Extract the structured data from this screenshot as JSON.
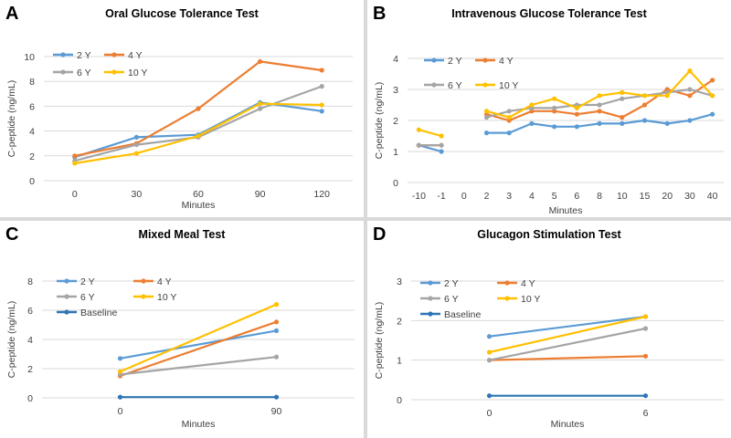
{
  "chart_data": [
    {
      "id": "a",
      "panel_label": "A",
      "type": "line",
      "title": "Oral Glucose Tolerance Test",
      "xlabel": "Minutes",
      "ylabel": "C-peptide  (ng/mL)",
      "categories": [
        "0",
        "30",
        "60",
        "90",
        "120"
      ],
      "ylim": [
        0,
        10
      ],
      "yticks": [
        "0",
        "2",
        "4",
        "6",
        "8",
        "10"
      ],
      "legend_position": "top-left",
      "series": [
        {
          "name": "2 Y",
          "color": "#5b9bd5",
          "values": [
            1.9,
            3.5,
            3.7,
            6.3,
            5.6
          ]
        },
        {
          "name": "4 Y",
          "color": "#ed7d31",
          "values": [
            2.0,
            3.0,
            5.8,
            9.6,
            8.9
          ]
        },
        {
          "name": "6 Y",
          "color": "#a5a5a5",
          "values": [
            1.6,
            2.9,
            3.5,
            5.8,
            7.6
          ]
        },
        {
          "name": "10 Y",
          "color": "#ffc000",
          "values": [
            1.4,
            2.2,
            3.6,
            6.2,
            6.1
          ]
        }
      ]
    },
    {
      "id": "b",
      "panel_label": "B",
      "type": "line",
      "title": "Intravenous Glucose Tolerance Test",
      "xlabel": "Minutes",
      "ylabel": "C-peptide  (ng/mL)",
      "categories": [
        "-10",
        "-1",
        "0",
        "2",
        "3",
        "4",
        "5",
        "6",
        "8",
        "10",
        "15",
        "20",
        "30",
        "40"
      ],
      "ylim": [
        0,
        4
      ],
      "yticks": [
        "0",
        "1",
        "2",
        "3",
        "4"
      ],
      "legend_position": "top-left",
      "series": [
        {
          "name": "2 Y",
          "color": "#5b9bd5",
          "values": [
            1.2,
            1.0,
            null,
            1.6,
            1.6,
            1.9,
            1.8,
            1.8,
            1.9,
            1.9,
            2.0,
            1.9,
            2.0,
            2.2
          ]
        },
        {
          "name": "4 Y",
          "color": "#ed7d31",
          "values": [
            1.2,
            1.2,
            null,
            2.2,
            2.0,
            2.3,
            2.3,
            2.2,
            2.3,
            2.1,
            2.5,
            3.0,
            2.8,
            3.3
          ]
        },
        {
          "name": "6 Y",
          "color": "#a5a5a5",
          "values": [
            1.2,
            1.2,
            null,
            2.1,
            2.3,
            2.4,
            2.4,
            2.5,
            2.5,
            2.7,
            2.8,
            2.9,
            3.0,
            2.8
          ]
        },
        {
          "name": "10 Y",
          "color": "#ffc000",
          "values": [
            1.7,
            1.5,
            null,
            2.3,
            2.1,
            2.5,
            2.7,
            2.4,
            2.8,
            2.9,
            2.8,
            2.8,
            3.6,
            2.8
          ]
        }
      ]
    },
    {
      "id": "c",
      "panel_label": "C",
      "type": "line",
      "title": "Mixed Meal Test",
      "xlabel": "Minutes",
      "ylabel": "C-peptide  (ng/mL)",
      "categories": [
        "0",
        "90"
      ],
      "ylim": [
        0,
        8
      ],
      "yticks": [
        "0",
        "2",
        "4",
        "6",
        "8"
      ],
      "legend_position": "top-left",
      "series": [
        {
          "name": "2 Y",
          "color": "#5b9bd5",
          "values": [
            2.7,
            4.6
          ]
        },
        {
          "name": "4 Y",
          "color": "#ed7d31",
          "values": [
            1.5,
            5.2
          ]
        },
        {
          "name": "6 Y",
          "color": "#a5a5a5",
          "values": [
            1.6,
            2.8
          ]
        },
        {
          "name": "10 Y",
          "color": "#ffc000",
          "values": [
            1.8,
            6.4
          ]
        },
        {
          "name": "Baseline",
          "color": "#2e75b6",
          "values": [
            0.05,
            0.05
          ]
        }
      ]
    },
    {
      "id": "d",
      "panel_label": "D",
      "type": "line",
      "title": "Glucagon Stimulation Test",
      "xlabel": "Minutes",
      "ylabel": "C-peptide  (ng/mL)",
      "categories": [
        "0",
        "6"
      ],
      "ylim": [
        0,
        3
      ],
      "yticks": [
        "0",
        "1",
        "2",
        "3"
      ],
      "legend_position": "top-left",
      "series": [
        {
          "name": "2 Y",
          "color": "#5b9bd5",
          "values": [
            1.6,
            2.1
          ]
        },
        {
          "name": "4 Y",
          "color": "#ed7d31",
          "values": [
            1.0,
            1.1
          ]
        },
        {
          "name": "6 Y",
          "color": "#a5a5a5",
          "values": [
            1.0,
            1.8
          ]
        },
        {
          "name": "10 Y",
          "color": "#ffc000",
          "values": [
            1.2,
            2.1
          ]
        },
        {
          "name": "Baseline",
          "color": "#2e75b6",
          "values": [
            0.1,
            0.1
          ]
        }
      ]
    }
  ]
}
